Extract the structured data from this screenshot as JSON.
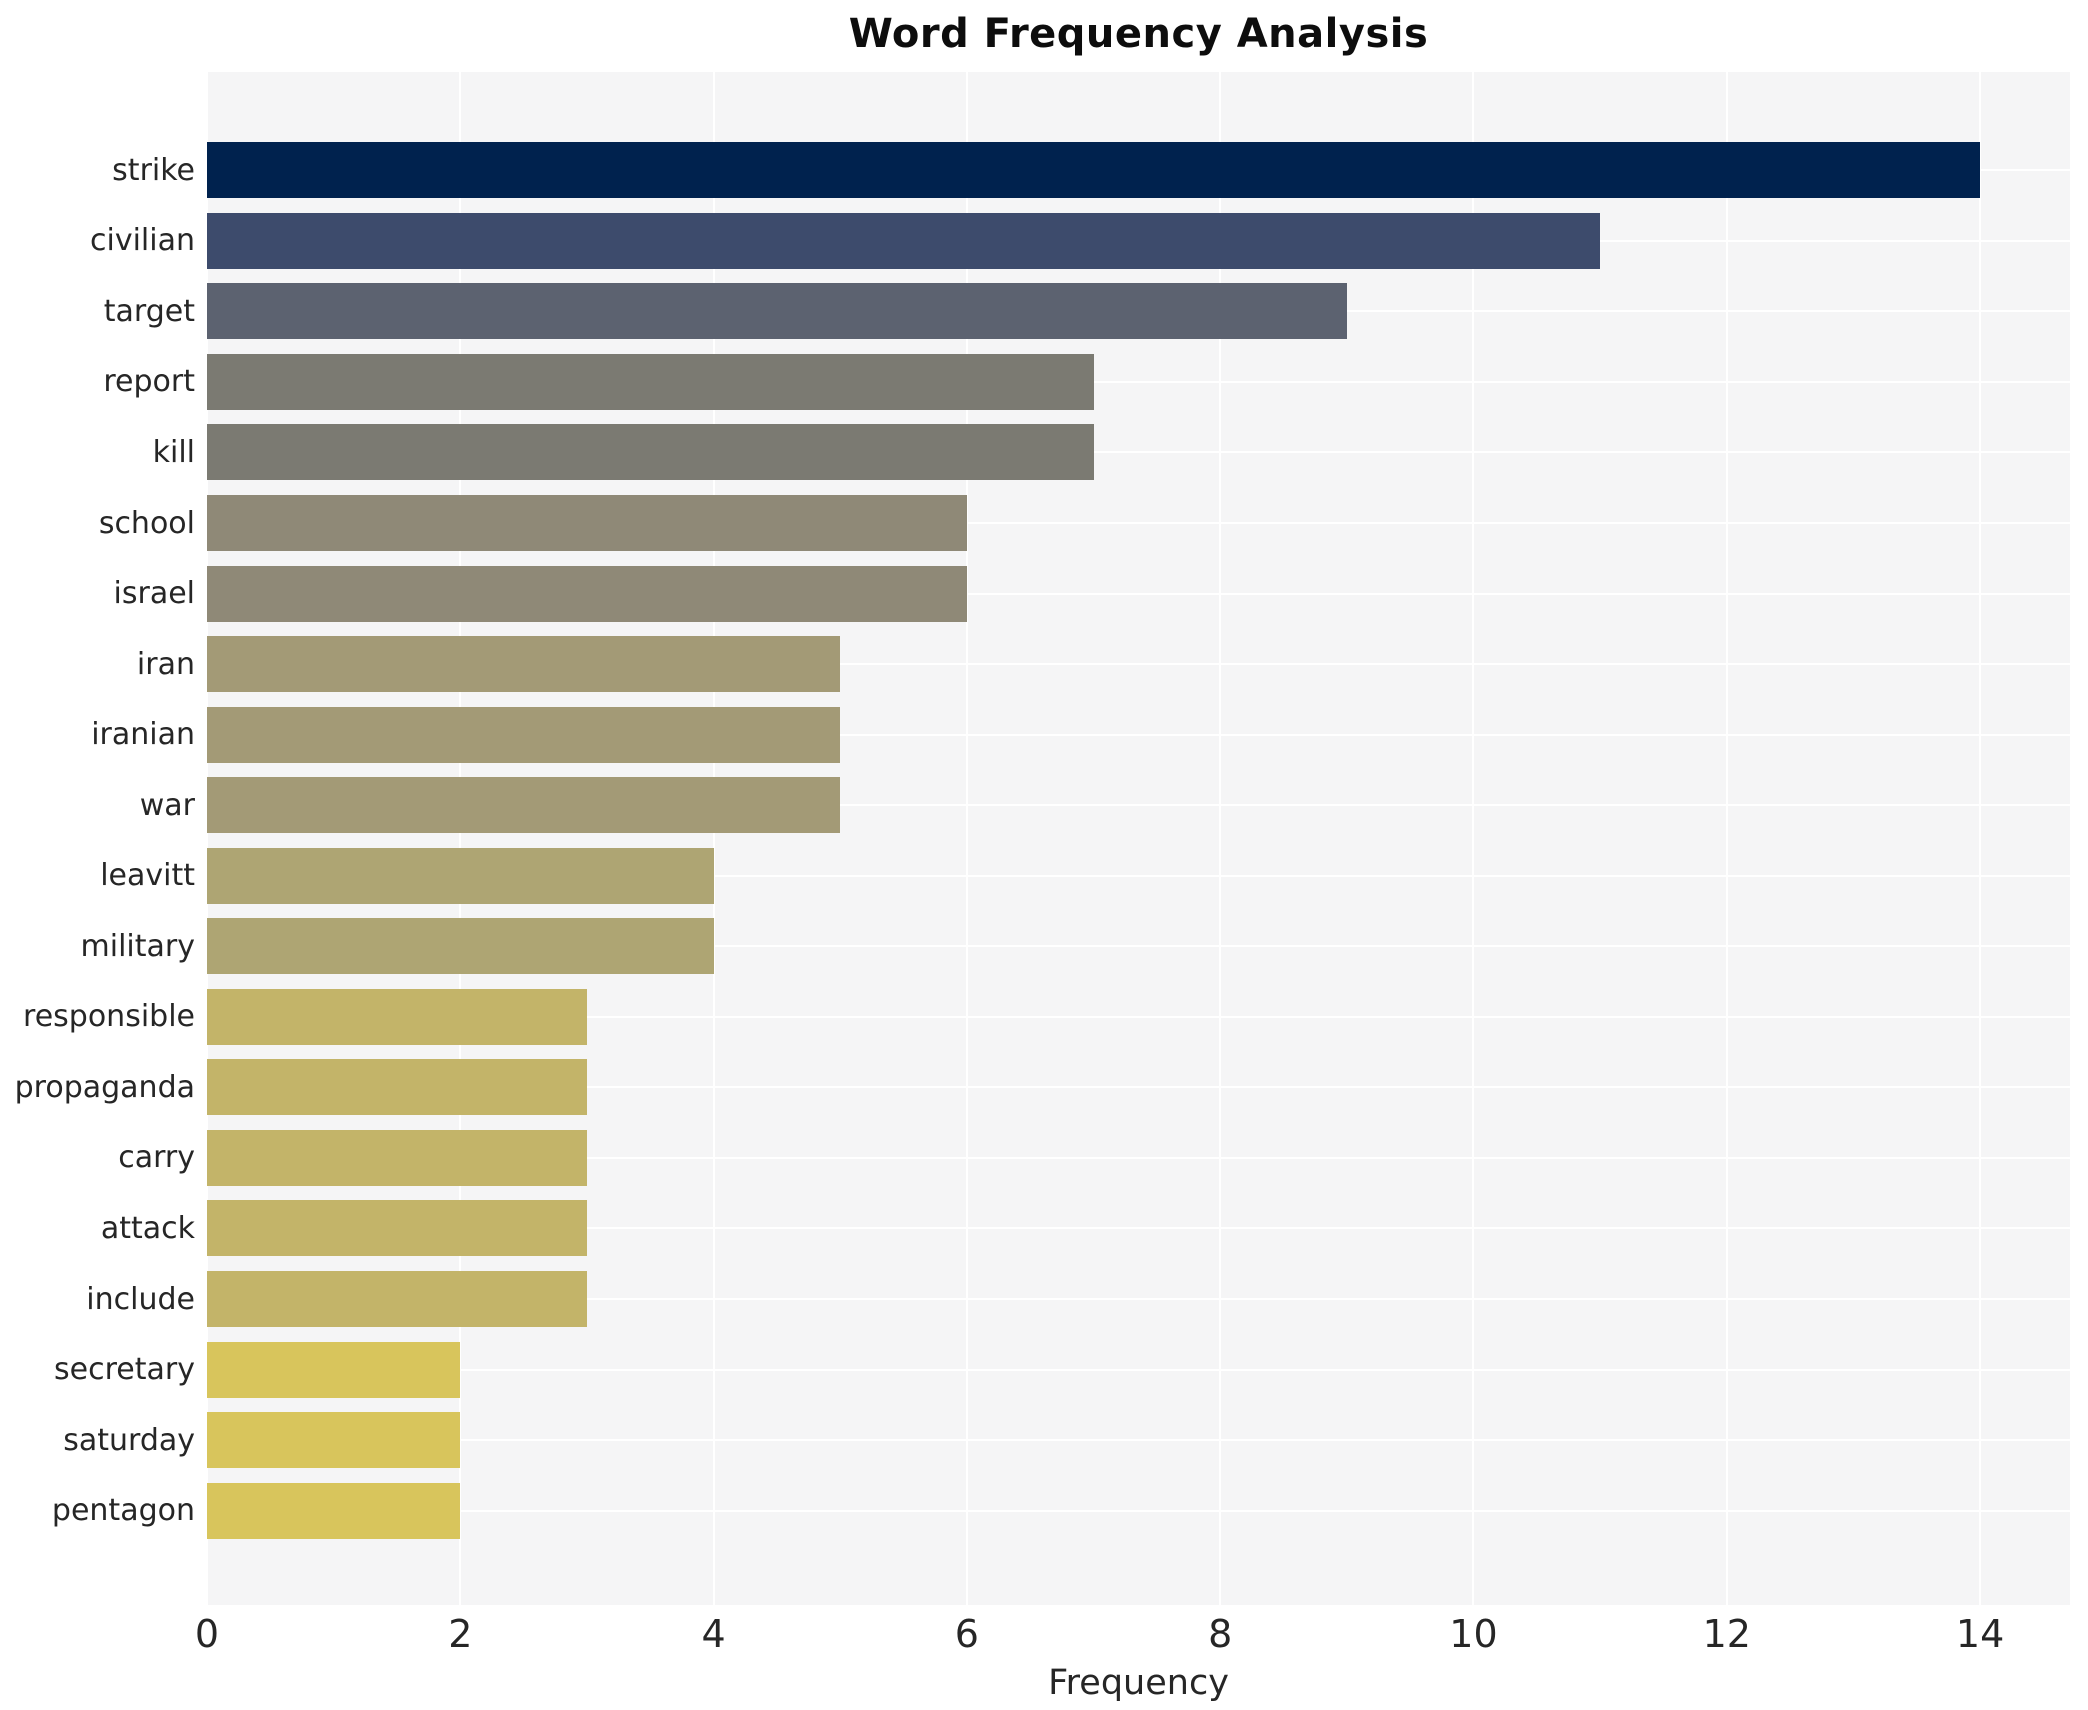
{
  "title": "Word Frequency Analysis",
  "chart_data": {
    "type": "bar",
    "orientation": "horizontal",
    "title": "Word Frequency Analysis",
    "xlabel": "Frequency",
    "ylabel": "",
    "categories": [
      "strike",
      "civilian",
      "target",
      "report",
      "kill",
      "school",
      "israel",
      "iran",
      "iranian",
      "war",
      "leavitt",
      "military",
      "responsible",
      "propaganda",
      "carry",
      "attack",
      "include",
      "secretary",
      "saturday",
      "pentagon"
    ],
    "values": [
      14,
      11,
      9,
      7,
      7,
      6,
      6,
      5,
      5,
      5,
      4,
      4,
      3,
      3,
      3,
      3,
      3,
      2,
      2,
      2
    ],
    "bar_colors": [
      "#00224e",
      "#3d4b6c",
      "#5c6270",
      "#7b7a72",
      "#7b7a72",
      "#8f8977",
      "#8f8977",
      "#a39a76",
      "#a39a76",
      "#a39a76",
      "#aea573",
      "#aea573",
      "#c3b469",
      "#c3b469",
      "#c3b469",
      "#c3b469",
      "#c3b469",
      "#d8c55c",
      "#d8c55c",
      "#d8c55c"
    ],
    "x_ticks": [
      0,
      2,
      4,
      6,
      8,
      10,
      12,
      14
    ],
    "xlim": [
      0,
      14.71
    ],
    "grid": "on",
    "grid_color": "#ffffff",
    "plot_background": "#f5f5f6",
    "figure_background": "#ffffff",
    "legend": "none",
    "colormap": "cividis"
  }
}
